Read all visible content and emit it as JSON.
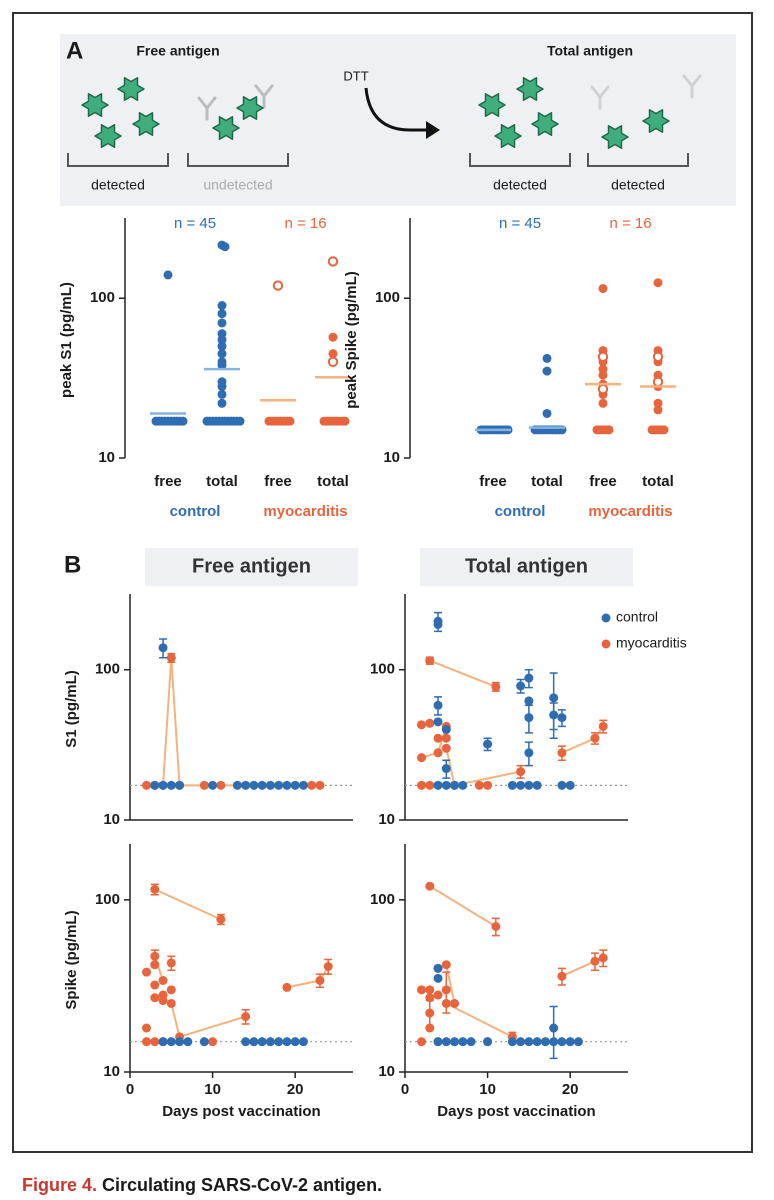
{
  "panel_a": {
    "letter": "A",
    "left_title": "Free antigen",
    "right_title": "Total antigen",
    "reagent": "DTT",
    "labels": [
      "detected",
      "undetected",
      "detected",
      "detected"
    ]
  },
  "panel_b": {
    "letter": "B"
  },
  "caption": {
    "label": "Figure 4.",
    "text": "Circulating SARS-CoV-2 antigen."
  },
  "chart_data": [
    {
      "type": "strip",
      "ylabel": "peak S1 (pg/mL)",
      "log_y": true,
      "ylim": [
        10,
        300
      ],
      "yticks": [
        10,
        100
      ],
      "groups": [
        {
          "name": "control",
          "n_label": "n = 45",
          "color": "#2f6db3",
          "median_color": "#86b4e0",
          "categories": [
            "free",
            "total"
          ],
          "values": [
            [
              140,
              17,
              17,
              17,
              17,
              17,
              17,
              17,
              17,
              17,
              17
            ],
            [
              215,
              210,
              90,
              80,
              70,
              60,
              55,
              50,
              45,
              40,
              38,
              30,
              28,
              25,
              22,
              17,
              17,
              17,
              17,
              17,
              17,
              17,
              17,
              17,
              17,
              17,
              17
            ]
          ],
          "open_values": [
            [],
            []
          ],
          "medians": [
            19,
            36
          ]
        },
        {
          "name": "myocarditis",
          "n_label": "n = 16",
          "color": "#e8643c",
          "median_color": "#f5b27c",
          "categories": [
            "free",
            "total"
          ],
          "values": [
            [
              17,
              17,
              17,
              17,
              17,
              17,
              17,
              17
            ],
            [
              57,
              45,
              17,
              17,
              17,
              17,
              17,
              17,
              17,
              17
            ]
          ],
          "open_values": [
            [
              120
            ],
            [
              170,
              40
            ]
          ],
          "medians": [
            23,
            32
          ]
        }
      ]
    },
    {
      "type": "strip",
      "ylabel": "peak Spike (pg/mL)",
      "log_y": true,
      "ylim": [
        10,
        300
      ],
      "yticks": [
        10,
        100
      ],
      "groups": [
        {
          "name": "control",
          "n_label": "n = 45",
          "color": "#2f6db3",
          "median_color": "#86b4e0",
          "categories": [
            "free",
            "total"
          ],
          "values": [
            [
              15,
              15,
              15,
              15,
              15,
              15,
              15,
              15,
              15,
              15
            ],
            [
              42,
              35,
              19,
              15,
              15,
              15,
              15,
              15,
              15,
              15,
              15,
              15,
              15
            ]
          ],
          "open_values": [
            [],
            []
          ],
          "medians": [
            15,
            15.5
          ]
        },
        {
          "name": "myocarditis",
          "n_label": "n = 16",
          "color": "#e8643c",
          "median_color": "#f5b27c",
          "categories": [
            "free",
            "total"
          ],
          "values": [
            [
              115,
              47,
              40,
              36,
              33,
              29,
              25,
              22,
              15,
              15,
              15,
              15,
              15
            ],
            [
              125,
              47,
              40,
              33,
              28,
              22,
              20,
              15,
              15,
              15,
              15,
              15
            ]
          ],
          "open_values": [
            [
              43,
              27
            ],
            [
              43,
              30
            ]
          ],
          "medians": [
            29,
            28
          ]
        }
      ]
    },
    {
      "type": "scatter",
      "title": "Free antigen",
      "ylabel": "S1 (pg/mL)",
      "log_y": true,
      "xlim": [
        0,
        27
      ],
      "ylim": [
        10,
        300
      ],
      "yticks": [
        10,
        100
      ],
      "threshold": 17,
      "line_color": "#f4b27e",
      "legend": false,
      "series": [
        {
          "name": "control",
          "color": "#2f6db3",
          "x": [
            3,
            4,
            4,
            5,
            6,
            10,
            13,
            14,
            15,
            16,
            17,
            18,
            19,
            20,
            21
          ],
          "values": [
            17,
            140,
            17,
            17,
            17,
            17,
            17,
            17,
            17,
            17,
            17,
            17,
            17,
            17,
            17
          ],
          "errors": [
            null,
            20,
            null,
            null,
            null,
            null,
            null,
            null,
            null,
            null,
            null,
            null,
            null,
            null,
            null
          ]
        },
        {
          "name": "myocarditis",
          "color": "#e8643c",
          "x": [
            2,
            3,
            4,
            5,
            6,
            9,
            11,
            22,
            23
          ],
          "values": [
            17,
            17,
            17,
            120,
            17,
            17,
            17,
            17,
            17
          ],
          "errors": [
            null,
            null,
            null,
            8,
            null,
            null,
            null,
            null,
            null
          ],
          "connections": [
            [
              2,
              3
            ],
            [
              3,
              4
            ],
            [
              4,
              7
            ]
          ]
        }
      ]
    },
    {
      "type": "scatter",
      "title": "Total antigen",
      "log_y": true,
      "xlim": [
        0,
        27
      ],
      "ylim": [
        10,
        300
      ],
      "yticks": [
        10,
        100
      ],
      "threshold": 17,
      "line_color": "#f4b27e",
      "legend": true,
      "legend_corner": "top-right",
      "series": [
        {
          "name": "control",
          "color": "#2f6db3",
          "x": [
            4,
            4,
            4,
            4,
            5,
            5,
            10,
            14,
            15,
            15,
            15,
            15,
            18,
            18,
            19,
            4,
            5,
            6,
            7,
            13,
            14,
            15,
            16,
            19,
            20
          ],
          "values": [
            210,
            200,
            58,
            45,
            40,
            22,
            32,
            78,
            88,
            62,
            48,
            28,
            65,
            50,
            48,
            17,
            17,
            17,
            17,
            17,
            17,
            17,
            17,
            17,
            17
          ],
          "errors": [
            30,
            null,
            8,
            null,
            null,
            3,
            3,
            8,
            12,
            null,
            10,
            5,
            30,
            10,
            6,
            null,
            null,
            null,
            null,
            null,
            null,
            null,
            null,
            null,
            null
          ]
        },
        {
          "name": "myocarditis",
          "color": "#e8643c",
          "x": [
            2,
            2,
            3,
            3,
            4,
            4,
            5,
            5,
            5,
            6,
            11,
            14,
            19,
            23,
            24,
            2,
            3,
            9,
            10
          ],
          "values": [
            43,
            26,
            115,
            44,
            28,
            35,
            42,
            35,
            30,
            17,
            77,
            21,
            28,
            35,
            42,
            17,
            17,
            17,
            17
          ],
          "errors": [
            null,
            null,
            6,
            null,
            null,
            null,
            null,
            null,
            null,
            null,
            5,
            2,
            3,
            3,
            4,
            null,
            null,
            null,
            null
          ],
          "connections": [
            [
              2,
              10
            ],
            [
              1,
              4
            ],
            [
              4,
              6
            ],
            [
              8,
              9
            ],
            [
              9,
              11
            ],
            [
              12,
              13
            ],
            [
              13,
              14
            ]
          ]
        }
      ]
    },
    {
      "type": "scatter",
      "ylabel": "Spike (pg/mL)",
      "xlabel": "Days post vaccination",
      "log_y": true,
      "xlim": [
        0,
        27
      ],
      "xticks": [
        0,
        10,
        20
      ],
      "ylim": [
        10,
        200
      ],
      "yticks": [
        10,
        100
      ],
      "threshold": 15,
      "line_color": "#f4b27e",
      "legend": false,
      "series": [
        {
          "name": "control",
          "color": "#2f6db3",
          "x": [
            4,
            5,
            6,
            7,
            9,
            14,
            15,
            16,
            17,
            18,
            19,
            20,
            21
          ],
          "values": [
            15,
            15,
            15,
            15,
            15,
            15,
            15,
            15,
            15,
            15,
            15,
            15,
            15
          ]
        },
        {
          "name": "myocarditis",
          "color": "#e8643c",
          "x": [
            2,
            2,
            3,
            3,
            3,
            3,
            3,
            4,
            4,
            4,
            5,
            5,
            5,
            6,
            11,
            14,
            19,
            23,
            24,
            2,
            3,
            4,
            10
          ],
          "values": [
            38,
            18,
            115,
            47,
            42,
            32,
            27,
            34,
            28,
            26,
            43,
            25,
            30,
            16,
            77,
            21,
            31,
            34,
            41,
            15,
            15,
            15,
            15
          ],
          "errors": [
            null,
            null,
            8,
            4,
            null,
            null,
            null,
            null,
            null,
            null,
            4,
            null,
            null,
            null,
            5,
            2,
            null,
            3,
            4,
            null,
            null,
            null,
            null
          ],
          "connections": [
            [
              2,
              14
            ],
            [
              11,
              13
            ],
            [
              13,
              15
            ],
            [
              16,
              17
            ],
            [
              17,
              18
            ],
            [
              3,
              7
            ]
          ]
        }
      ]
    },
    {
      "type": "scatter",
      "xlabel": "Days post vaccination",
      "log_y": true,
      "xlim": [
        0,
        27
      ],
      "xticks": [
        0,
        10,
        20
      ],
      "ylim": [
        10,
        200
      ],
      "yticks": [
        10,
        100
      ],
      "threshold": 15,
      "line_color": "#f4b27e",
      "legend": false,
      "series": [
        {
          "name": "control",
          "color": "#2f6db3",
          "x": [
            4,
            4,
            18,
            4,
            5,
            6,
            7,
            8,
            10,
            13,
            14,
            15,
            16,
            17,
            18,
            19,
            20,
            21
          ],
          "values": [
            40,
            35,
            18,
            15,
            15,
            15,
            15,
            15,
            15,
            15,
            15,
            15,
            15,
            15,
            15,
            15,
            15,
            15
          ],
          "errors": [
            null,
            null,
            6,
            null,
            null,
            null,
            null,
            null,
            null,
            null,
            null,
            null,
            null,
            null,
            null,
            null,
            null,
            null
          ]
        },
        {
          "name": "myocarditis",
          "color": "#e8643c",
          "x": [
            3,
            11,
            2,
            3,
            3,
            3,
            3,
            4,
            4,
            5,
            5,
            5,
            6,
            13,
            19,
            23,
            24,
            2,
            4,
            10
          ],
          "values": [
            120,
            70,
            30,
            30,
            27,
            22,
            18,
            40,
            28,
            42,
            30,
            25,
            25,
            16,
            36,
            44,
            46,
            15,
            15,
            15
          ],
          "errors": [
            null,
            8,
            null,
            null,
            null,
            4,
            null,
            null,
            null,
            null,
            8,
            null,
            null,
            1,
            4,
            5,
            5,
            null,
            null,
            null
          ],
          "connections": [
            [
              0,
              1
            ],
            [
              11,
              13
            ],
            [
              14,
              15
            ],
            [
              15,
              16
            ],
            [
              9,
              12
            ]
          ]
        }
      ]
    }
  ]
}
